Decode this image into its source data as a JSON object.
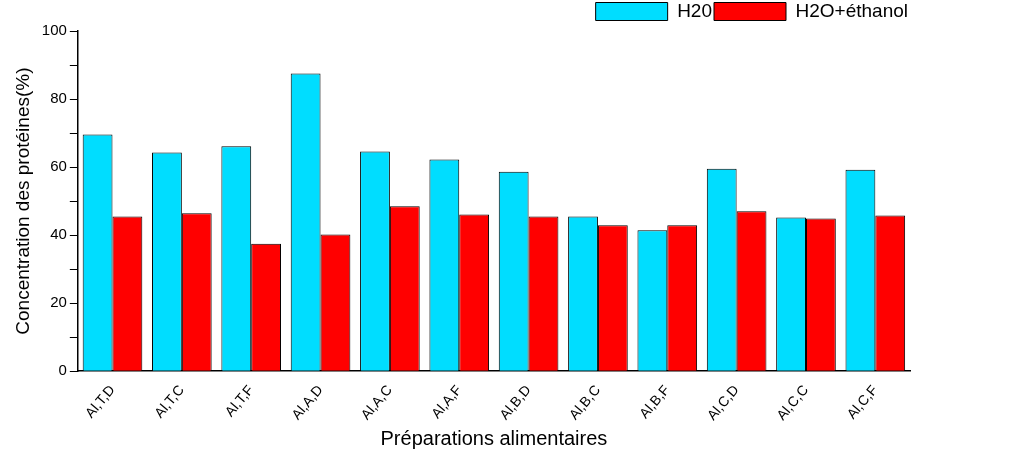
{
  "chart_data": {
    "type": "bar",
    "xlabel": "Préparations alimentaires",
    "ylabel": "Concentration des protéines(%)",
    "categories": [
      "Al,T,D",
      "Al,T,C",
      "Al,T,F",
      "Al,A,D",
      "Al,A,C",
      "Al,A,F",
      "Al,B,D",
      "Al,B,C",
      "Al,B,F",
      "Al,C,D",
      "Al,C,C",
      "Al,C,F"
    ],
    "series": [
      {
        "name": "H20",
        "color": "#00ddff",
        "values": [
          69.6,
          64.3,
          66.1,
          87.5,
          64.6,
          62.2,
          58.6,
          45.5,
          41.4,
          59.5,
          45.2,
          59.2
        ]
      },
      {
        "name": "H2O+éthanol",
        "color": "#ff0000",
        "values": [
          45.5,
          46.4,
          37.5,
          40.2,
          48.5,
          46.1,
          45.5,
          42.9,
          42.9,
          47.0,
          44.9,
          45.8
        ]
      }
    ],
    "ylim": [
      0,
      100
    ],
    "yticks": [
      0,
      {
        "value": 10,
        "label": null
      },
      20,
      {
        "value": 30,
        "label": null
      },
      40,
      {
        "value": 50,
        "label": null
      },
      60,
      {
        "value": 70,
        "label": null
      },
      80,
      {
        "value": 90,
        "label": null
      },
      100
    ],
    "grid": false,
    "legend": "top right"
  }
}
